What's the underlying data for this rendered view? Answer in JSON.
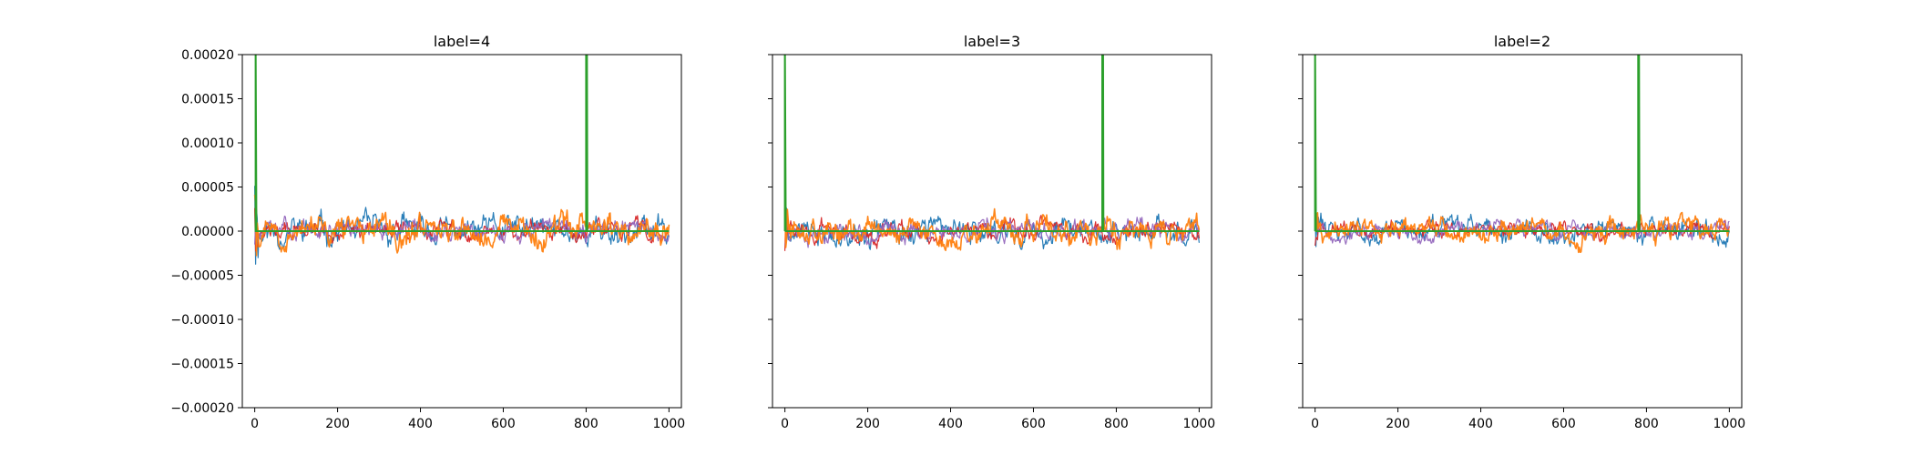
{
  "figure": {
    "subplots": [
      "label=4",
      "label=3",
      "label=2"
    ]
  },
  "chart_data": [
    {
      "type": "line",
      "title": "label=4",
      "xlabel": "",
      "ylabel": "",
      "xlim": [
        -30,
        1030
      ],
      "ylim": [
        -0.0002,
        0.0002
      ],
      "x_ticks": [
        0,
        200,
        400,
        600,
        800,
        1000
      ],
      "y_ticks": [
        -0.0002,
        -0.00015,
        -0.0001,
        -5e-05,
        0.0,
        5e-05,
        0.0001,
        0.00015,
        0.0002
      ],
      "y_tick_labels": [
        "−0.00020",
        "−0.00015",
        "−0.00010",
        "−0.00005",
        "0.00000",
        "0.00005",
        "0.00010",
        "0.00015",
        "0.00020"
      ],
      "y_tick_labels_visible": true,
      "grid": false,
      "noise_series": [
        {
          "color": "#1f77b4",
          "amplitude": 1.2e-05,
          "seed": 11,
          "start_spike": 5.8e-05
        },
        {
          "color": "#d62728",
          "amplitude": 8e-06,
          "seed": 12,
          "start_spike": 3e-05
        },
        {
          "color": "#9467bd",
          "amplitude": 8e-06,
          "seed": 13,
          "start_spike": 2e-05
        },
        {
          "color": "#ff7f0e",
          "amplitude": 1.2e-05,
          "seed": 14,
          "start_spike": 4.5e-05
        }
      ],
      "spike_series": {
        "color": "#2ca02c",
        "baseline": 0.0,
        "spike_x": [
          2,
          800,
          802
        ]
      }
    },
    {
      "type": "line",
      "title": "label=3",
      "xlabel": "",
      "ylabel": "",
      "xlim": [
        -30,
        1030
      ],
      "ylim": [
        -0.0002,
        0.0002
      ],
      "x_ticks": [
        0,
        200,
        400,
        600,
        800,
        1000
      ],
      "y_ticks": [
        -0.0002,
        -0.00015,
        -0.0001,
        -5e-05,
        0.0,
        5e-05,
        0.0001,
        0.00015,
        0.0002
      ],
      "y_tick_labels": [],
      "y_tick_labels_visible": false,
      "grid": false,
      "noise_series": [
        {
          "color": "#1f77b4",
          "amplitude": 1.1e-05,
          "seed": 21,
          "start_spike": 4e-05
        },
        {
          "color": "#d62728",
          "amplitude": 8e-06,
          "seed": 22,
          "start_spike": 3e-05
        },
        {
          "color": "#9467bd",
          "amplitude": 8e-06,
          "seed": 23,
          "start_spike": 2e-05
        },
        {
          "color": "#ff7f0e",
          "amplitude": 1.1e-05,
          "seed": 24,
          "start_spike": 3e-05
        }
      ],
      "spike_series": {
        "color": "#2ca02c",
        "baseline": 0.0,
        "spike_x": [
          0,
          766,
          768
        ]
      }
    },
    {
      "type": "line",
      "title": "label=2",
      "xlabel": "",
      "ylabel": "",
      "xlim": [
        -30,
        1030
      ],
      "ylim": [
        -0.0002,
        0.0002
      ],
      "x_ticks": [
        0,
        200,
        400,
        600,
        800,
        1000
      ],
      "y_ticks": [
        -0.0002,
        -0.00015,
        -0.0001,
        -5e-05,
        0.0,
        5e-05,
        0.0001,
        0.00015,
        0.0002
      ],
      "y_tick_labels": [],
      "y_tick_labels_visible": false,
      "grid": false,
      "noise_series": [
        {
          "color": "#1f77b4",
          "amplitude": 1e-05,
          "seed": 31,
          "start_spike": 3e-05
        },
        {
          "color": "#d62728",
          "amplitude": 7e-06,
          "seed": 32,
          "start_spike": 2e-05
        },
        {
          "color": "#9467bd",
          "amplitude": 7e-06,
          "seed": 33,
          "start_spike": 2e-05
        },
        {
          "color": "#ff7f0e",
          "amplitude": 1e-05,
          "seed": 34,
          "start_spike": 3e-05
        }
      ],
      "spike_series": {
        "color": "#2ca02c",
        "baseline": 0.0,
        "spike_x": [
          0,
          780,
          782
        ]
      }
    }
  ]
}
